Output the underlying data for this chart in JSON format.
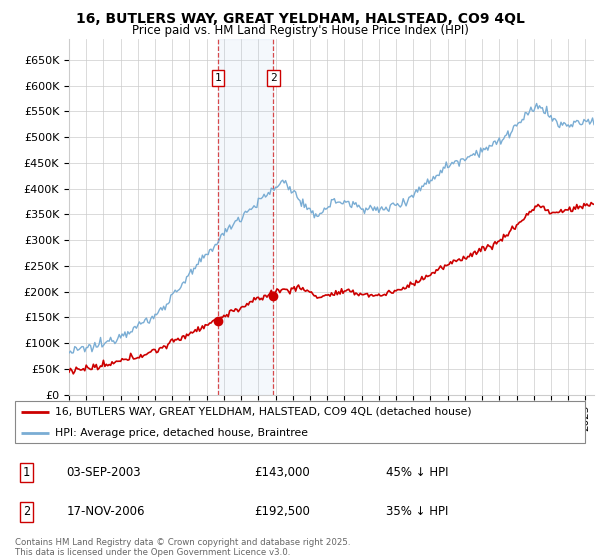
{
  "title": "16, BUTLERS WAY, GREAT YELDHAM, HALSTEAD, CO9 4QL",
  "subtitle": "Price paid vs. HM Land Registry's House Price Index (HPI)",
  "yticks": [
    0,
    50000,
    100000,
    150000,
    200000,
    250000,
    300000,
    350000,
    400000,
    450000,
    500000,
    550000,
    600000,
    650000
  ],
  "ytick_labels": [
    "£0",
    "£50K",
    "£100K",
    "£150K",
    "£200K",
    "£250K",
    "£300K",
    "£350K",
    "£400K",
    "£450K",
    "£500K",
    "£550K",
    "£600K",
    "£650K"
  ],
  "xlim_start": 1995.0,
  "xlim_end": 2025.5,
  "ylim_min": 0,
  "ylim_max": 690000,
  "sale1_date": 2003.67,
  "sale1_price": 143000,
  "sale2_date": 2006.88,
  "sale2_price": 192500,
  "legend_line1": "16, BUTLERS WAY, GREAT YELDHAM, HALSTEAD, CO9 4QL (detached house)",
  "legend_line2": "HPI: Average price, detached house, Braintree",
  "table_row1": [
    "1",
    "03-SEP-2003",
    "£143,000",
    "45% ↓ HPI"
  ],
  "table_row2": [
    "2",
    "17-NOV-2006",
    "£192,500",
    "35% ↓ HPI"
  ],
  "footer": "Contains HM Land Registry data © Crown copyright and database right 2025.\nThis data is licensed under the Open Government Licence v3.0.",
  "red_color": "#cc0000",
  "blue_color": "#7aadd4",
  "background_color": "#ffffff",
  "grid_color": "#cccccc"
}
